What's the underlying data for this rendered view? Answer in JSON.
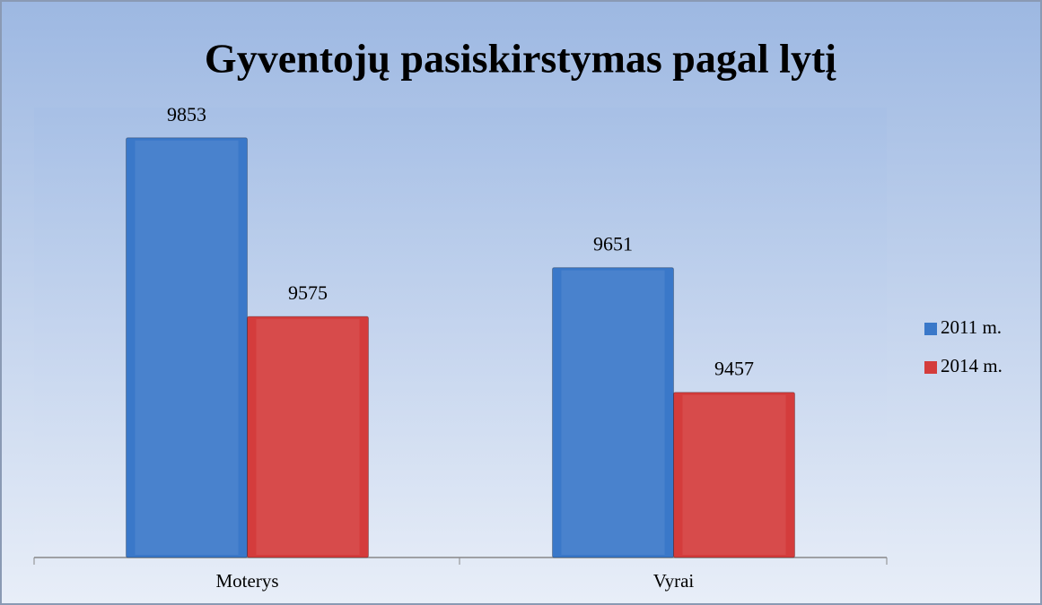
{
  "chart_data": {
    "type": "bar",
    "title": "Gyventojų pasiskirstymas pagal lytį",
    "categories": [
      "Moterys",
      "Vyrai"
    ],
    "series": [
      {
        "name": "2011 m.",
        "color": "#3a78c9",
        "values": [
          9853,
          9651
        ]
      },
      {
        "name": "2014 m.",
        "color": "#d43c3c",
        "values": [
          9575,
          9457
        ]
      }
    ],
    "ylim": [
      9200,
      9900
    ],
    "legend": "right"
  }
}
